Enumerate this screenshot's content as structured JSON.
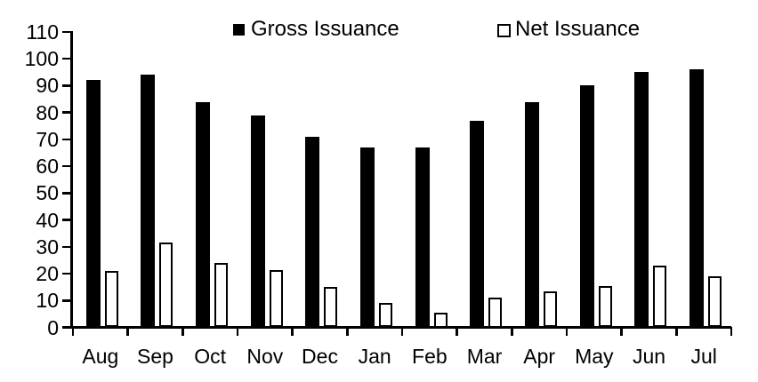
{
  "chart_data": {
    "type": "bar",
    "title": "",
    "xlabel": "",
    "ylabel": "",
    "categories": [
      "Aug",
      "Sep",
      "Oct",
      "Nov",
      "Dec",
      "Jan",
      "Feb",
      "Mar",
      "Apr",
      "May",
      "Jun",
      "Jul"
    ],
    "series": [
      {
        "name": "Gross Issuance",
        "style": "filled",
        "fill": "#000000",
        "values": [
          92,
          94,
          84,
          79,
          71,
          67,
          67,
          77,
          84,
          90,
          95,
          96
        ]
      },
      {
        "name": "Net Issuance",
        "style": "hollow",
        "fill": "#ffffff",
        "border": "#000000",
        "values": [
          21,
          31.5,
          24,
          21.5,
          15,
          9,
          5.5,
          11,
          13.5,
          15.5,
          23,
          19
        ]
      }
    ],
    "ylim": [
      0,
      110
    ],
    "yticks": [
      0,
      10,
      20,
      30,
      40,
      50,
      60,
      70,
      80,
      90,
      100,
      110
    ],
    "legend_position": "top-center",
    "grid": "off"
  },
  "colors": {
    "foreground": "#000000",
    "background": "#ffffff"
  }
}
